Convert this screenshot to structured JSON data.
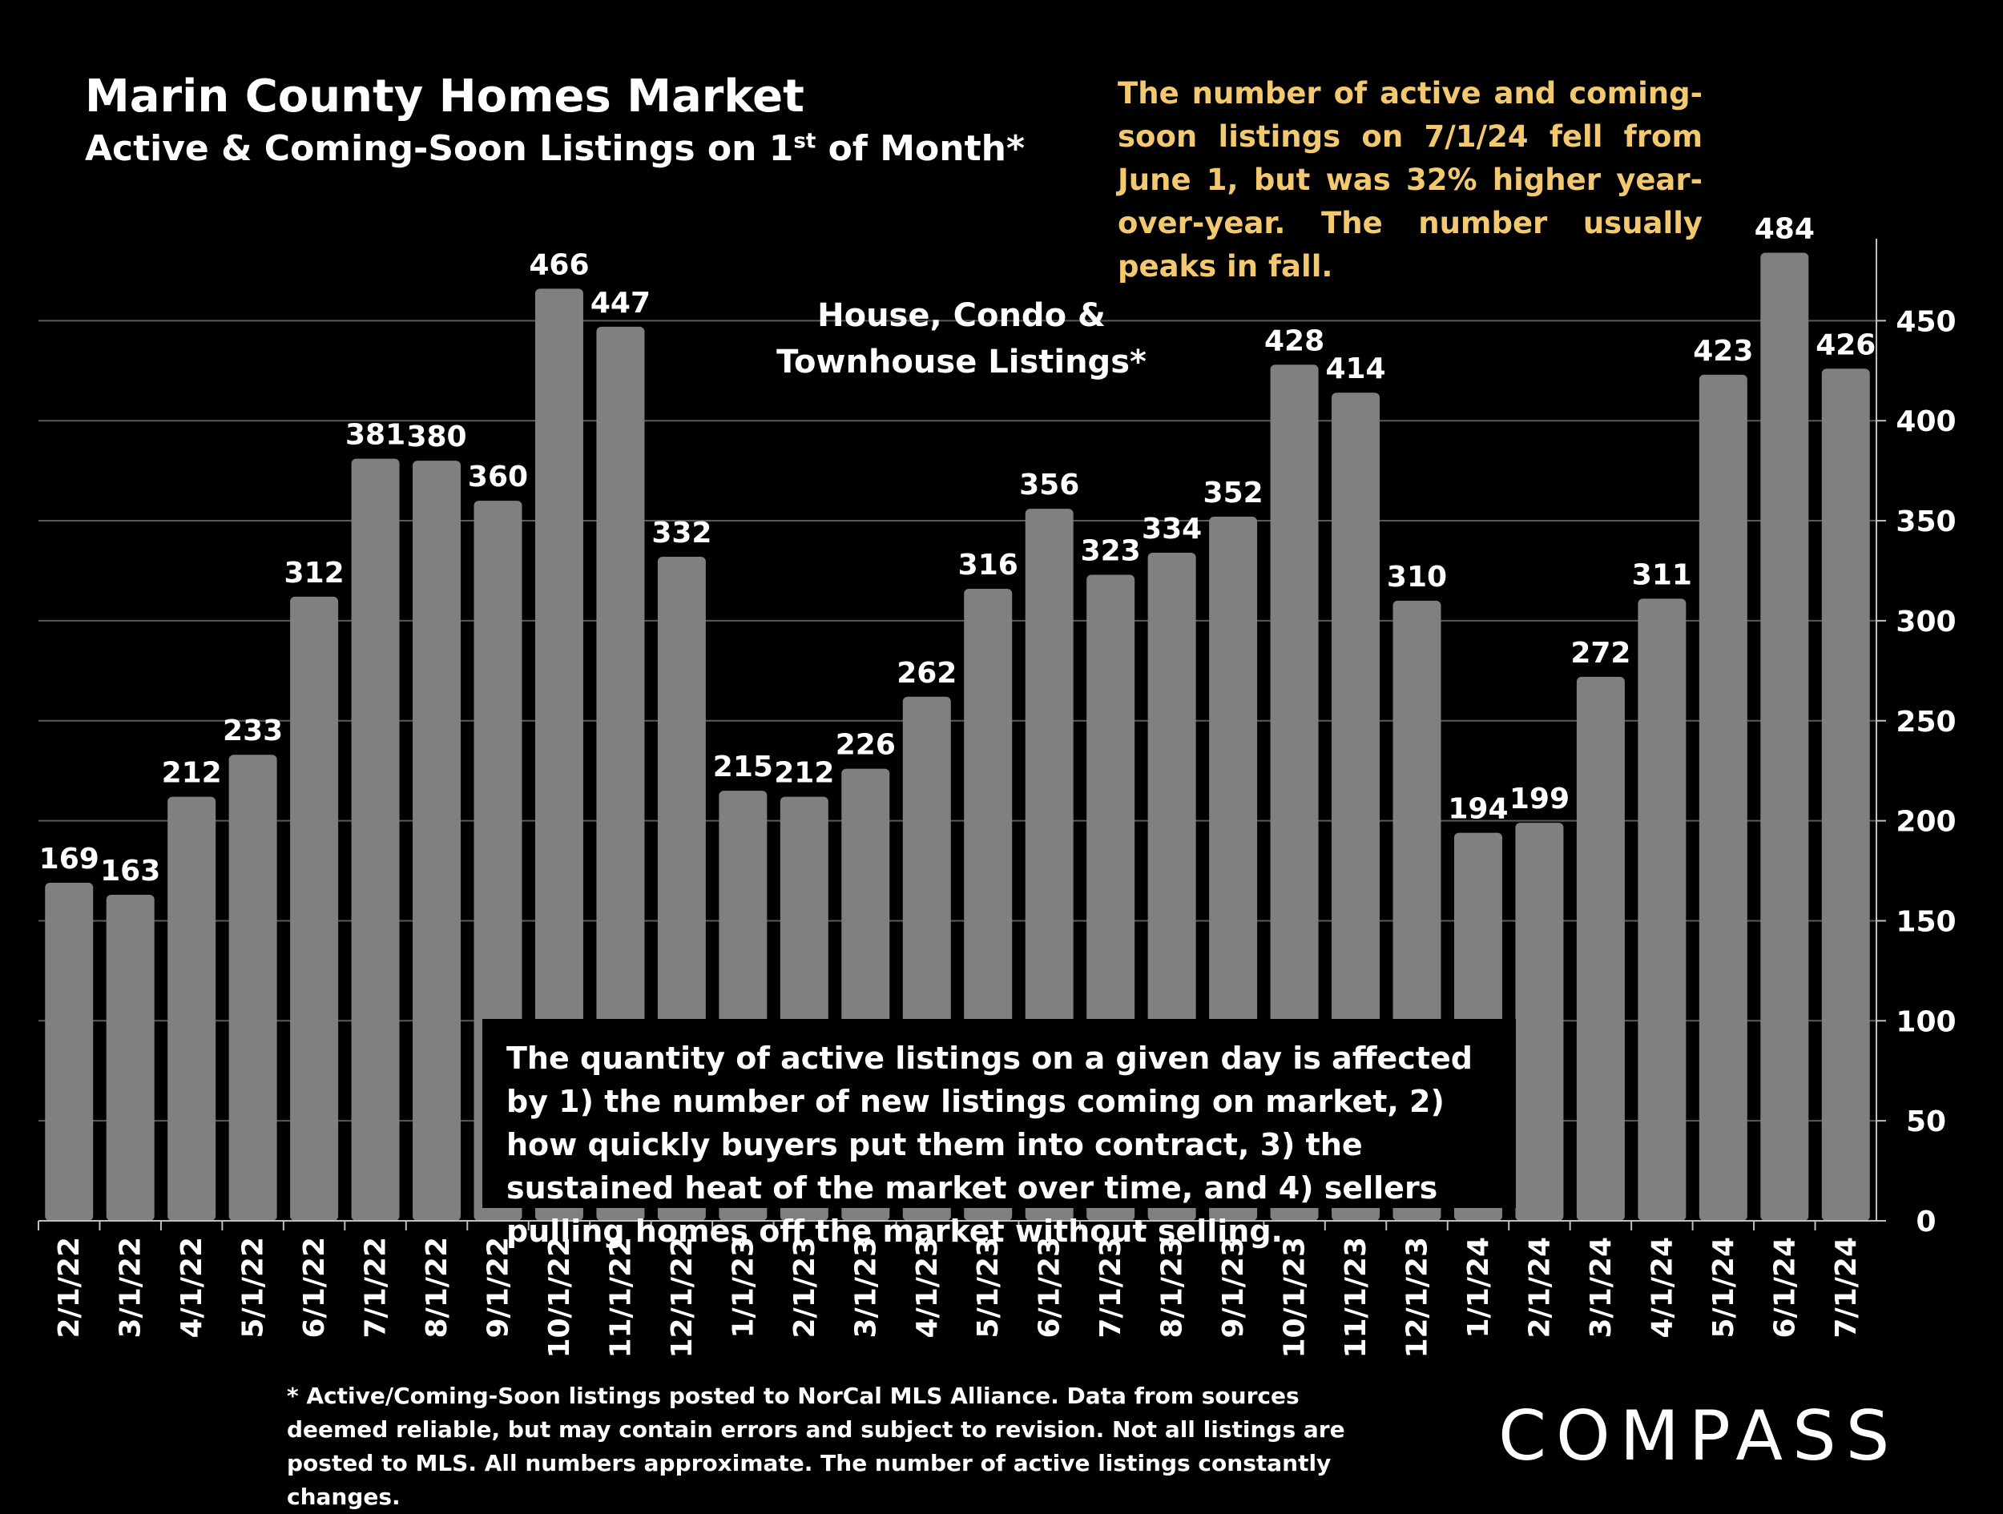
{
  "title": "Marin County Homes Market",
  "subtitle": {
    "main": "Active & Coming-Soon Listings on 1",
    "sup": "st",
    "tail": " of Month*"
  },
  "annotation_top": "The number of active and coming-soon listings on 7/1/24 fell from June 1, but was 32% higher year-over-year. The number usually peaks in fall.",
  "chart_label": "House, Condo & Townhouse Listings*",
  "annotation_box": "The quantity of active listings on a given day is affected by 1) the number of new listings coming on market, 2) how quickly buyers put them into contract, 3) the sustained heat of the market over time, and 4) sellers pulling homes off the market without selling.",
  "footnote": "* Active/Coming-Soon listings posted to NorCal MLS Alliance.  Data from sources deemed reliable, but may contain errors and subject to revision.  Not all listings are posted to MLS. All numbers approximate. The number of active listings constantly changes.",
  "logo_text": "COMPASS",
  "colors": {
    "background": "#000000",
    "bar": "#808080",
    "annotation": "#f2c870",
    "text": "#ffffff"
  },
  "chart_data": {
    "type": "bar",
    "title": "Active & Coming-Soon Listings on 1st of Month*",
    "categories": [
      "2/1/22",
      "3/1/22",
      "4/1/22",
      "5/1/22",
      "6/1/22",
      "7/1/22",
      "8/1/22",
      "9/1/22",
      "10/1/22",
      "11/1/22",
      "12/1/22",
      "1/1/23",
      "2/1/23",
      "3/1/23",
      "4/1/23",
      "5/1/23",
      "6/1/23",
      "7/1/23",
      "8/1/23",
      "9/1/23",
      "10/1/23",
      "11/1/23",
      "12/1/23",
      "1/1/24",
      "2/1/24",
      "3/1/24",
      "4/1/24",
      "5/1/24",
      "6/1/24",
      "7/1/24"
    ],
    "values": [
      169,
      163,
      212,
      233,
      312,
      381,
      380,
      360,
      466,
      447,
      332,
      215,
      212,
      226,
      262,
      316,
      356,
      323,
      334,
      352,
      428,
      414,
      310,
      194,
      199,
      272,
      311,
      423,
      484,
      426
    ],
    "ylim": [
      0,
      500
    ],
    "yticks": [
      0,
      50,
      100,
      150,
      200,
      250,
      300,
      350,
      400,
      450
    ],
    "y_axis_side": "right",
    "grid": true,
    "data_labels": true,
    "xlabel": "",
    "ylabel": ""
  }
}
